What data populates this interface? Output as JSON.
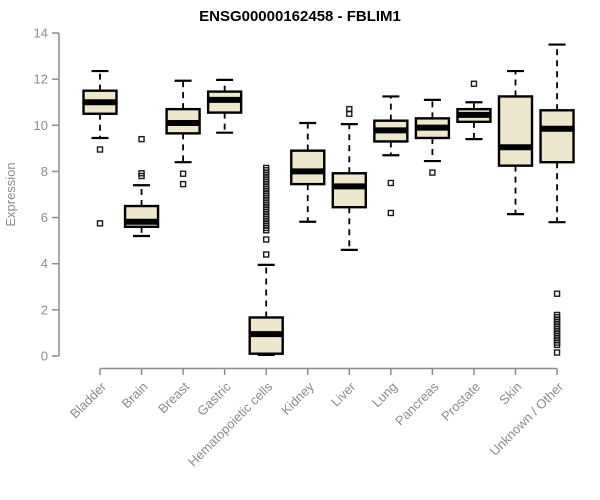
{
  "colors": {
    "box_fill": "#EDE7CE",
    "box_stroke": "#000000",
    "median_color": "#000000",
    "whisker_color": "#000000",
    "outlier_stroke": "#1a1a1a",
    "axis_color": "#8c8c8c",
    "tick_label_color": "#8c8c8c",
    "title_color": "#000000",
    "background": "#ffffff"
  },
  "chart_data": {
    "type": "boxplot",
    "title": "ENSG00000162458 - FBLIM1",
    "xlabel": "",
    "ylabel": "Expression",
    "ylim": [
      0,
      14
    ],
    "yticks": [
      0,
      2,
      4,
      6,
      8,
      10,
      12,
      14
    ],
    "grid": false,
    "legend": false,
    "categories": [
      "Bladder",
      "Brain",
      "Breast",
      "Gastric",
      "Hematopoietic cells",
      "Kidney",
      "Liver",
      "Lung",
      "Pancreas",
      "Prostate",
      "Skin",
      "Unknown / Other"
    ],
    "series": [
      {
        "name": "Bladder",
        "whisker_low": 9.45,
        "q1": 10.5,
        "median": 11.0,
        "q3": 11.5,
        "whisker_high": 12.35,
        "outliers": [
          8.95,
          5.75
        ]
      },
      {
        "name": "Brain",
        "whisker_low": 5.2,
        "q1": 5.6,
        "median": 5.82,
        "q3": 6.5,
        "whisker_high": 7.4,
        "outliers": [
          9.4,
          7.92,
          7.8
        ]
      },
      {
        "name": "Breast",
        "whisker_low": 8.4,
        "q1": 9.65,
        "median": 10.1,
        "q3": 10.7,
        "whisker_high": 11.93,
        "outliers": [
          7.9,
          7.45
        ]
      },
      {
        "name": "Gastric",
        "whisker_low": 9.68,
        "q1": 10.55,
        "median": 11.1,
        "q3": 11.46,
        "whisker_high": 11.97,
        "outliers": []
      },
      {
        "name": "Hematopoietic cells",
        "whisker_low": 0.05,
        "q1": 0.1,
        "median": 0.95,
        "q3": 1.67,
        "whisker_high": 3.95,
        "outliers": [
          8.15,
          8.05,
          7.95,
          7.85,
          7.75,
          7.65,
          7.55,
          7.45,
          7.35,
          7.25,
          7.15,
          7.05,
          6.95,
          6.85,
          6.75,
          6.65,
          6.55,
          6.45,
          6.35,
          6.25,
          6.15,
          6.05,
          5.95,
          5.85,
          5.75,
          5.65,
          5.55,
          5.45,
          5.05,
          4.4
        ]
      },
      {
        "name": "Kidney",
        "whisker_low": 5.82,
        "q1": 7.45,
        "median": 8.0,
        "q3": 8.9,
        "whisker_high": 10.1,
        "outliers": []
      },
      {
        "name": "Liver",
        "whisker_low": 4.6,
        "q1": 6.45,
        "median": 7.35,
        "q3": 7.92,
        "whisker_high": 10.05,
        "outliers": [
          10.7,
          10.5
        ]
      },
      {
        "name": "Lung",
        "whisker_low": 8.7,
        "q1": 9.3,
        "median": 9.78,
        "q3": 10.2,
        "whisker_high": 11.25,
        "outliers": [
          7.5,
          6.2
        ]
      },
      {
        "name": "Pancreas",
        "whisker_low": 8.45,
        "q1": 9.45,
        "median": 9.9,
        "q3": 10.3,
        "whisker_high": 11.1,
        "outliers": [
          7.95
        ]
      },
      {
        "name": "Prostate",
        "whisker_low": 9.4,
        "q1": 10.15,
        "median": 10.45,
        "q3": 10.7,
        "whisker_high": 11.0,
        "outliers": [
          11.8
        ]
      },
      {
        "name": "Skin",
        "whisker_low": 6.15,
        "q1": 8.25,
        "median": 9.05,
        "q3": 11.25,
        "whisker_high": 12.35,
        "outliers": []
      },
      {
        "name": "Unknown / Other",
        "whisker_low": 5.8,
        "q1": 8.4,
        "median": 9.85,
        "q3": 10.65,
        "whisker_high": 13.5,
        "outliers": [
          2.7,
          1.78,
          1.68,
          1.58,
          1.48,
          1.38,
          1.28,
          1.18,
          1.08,
          0.98,
          0.88,
          0.78,
          0.68,
          0.58,
          0.48,
          0.15
        ]
      }
    ]
  }
}
